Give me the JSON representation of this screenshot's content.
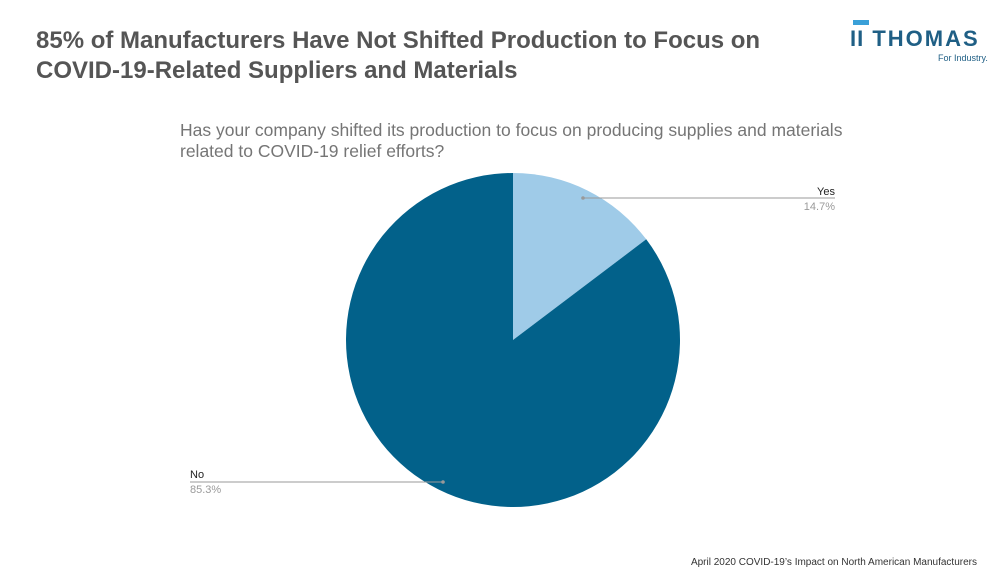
{
  "title": "85% of Manufacturers Have Not Shifted Production to Focus on COVID-19-Related Suppliers and Materials",
  "logo": {
    "word": "THOMAS",
    "tagline": "For Industry."
  },
  "footer": "April 2020 COVID-19’s Impact on North American Manufacturers",
  "chart_data": {
    "type": "pie",
    "title": "Has your company shifted its production to focus on producing supplies and materials related to COVID-19 relief efforts?",
    "categories": [
      "Yes",
      "No"
    ],
    "values": [
      14.7,
      85.3
    ],
    "labels": [
      "14.7%",
      "85.3%"
    ],
    "colors": [
      "#9fcbe8",
      "#02618a"
    ],
    "legend": "none"
  }
}
